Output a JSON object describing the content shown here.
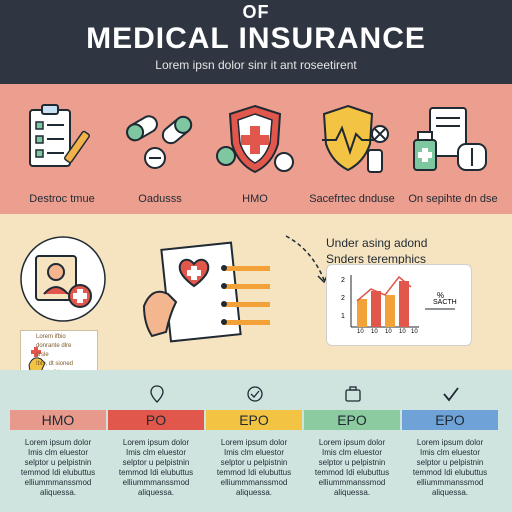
{
  "header": {
    "top_text": "OF",
    "title": "MEDICAL INSURANCE",
    "subtitle": "Lorem ipsn dolor sinr it ant roseetirent"
  },
  "icons_row": [
    {
      "icon": "clipboard-checklist-icon",
      "caption": "Destroc tmue"
    },
    {
      "icon": "pills-icon",
      "caption": "Oadusss"
    },
    {
      "icon": "shield-cross-icon",
      "caption": "HMO"
    },
    {
      "icon": "heartbeat-shield-icon",
      "caption": "Sacefrtec dnduse"
    },
    {
      "icon": "medical-kit-icon",
      "caption": "On sepihte dn dse"
    }
  ],
  "middle": {
    "under_line1": "Under asing adond",
    "under_line2": "Snders teremphics",
    "chart_ticks_y": [
      "2",
      "2",
      "1"
    ],
    "chart_ticks_x": [
      "10",
      "10",
      "10",
      "10",
      "10"
    ],
    "chart_side_label1": "%",
    "chart_side_label2": "SACTH",
    "note_lines": [
      "Lorem ifbio",
      "donrante dlre",
      "srsle",
      "Ibls, dt sioned",
      "aotetrdid"
    ]
  },
  "plans": [
    {
      "name": "HMO",
      "color": "#e79a8c",
      "icon": "none",
      "desc": [
        "Lorem ipsum dolor",
        "Imis clm eluestor",
        "selptor u pelpistnin",
        "temmod Idi elubuttus",
        "elliummmanssmod",
        "aliquessa."
      ]
    },
    {
      "name": "PO",
      "color": "#e2574c",
      "icon": "location-pin-icon",
      "desc": [
        "Lorem ipsum dolor",
        "Imis clm eluestor",
        "selptor u pelpistnin",
        "temmod Idi elubuttus",
        "elliummmanssmod",
        "aliquessa."
      ]
    },
    {
      "name": "EPO",
      "color": "#f3c343",
      "icon": "check-circle-icon",
      "desc": [
        "Lorem ipsum dolor",
        "Imis clm eluestor",
        "selptor u pelpistnin",
        "temmod Idi elubuttus",
        "elliummmanssmod",
        "aliquessa."
      ]
    },
    {
      "name": "EPO",
      "color": "#8ccaa0",
      "icon": "briefcase-icon",
      "desc": [
        "Lorem ipsum dolor",
        "Imis clm eluestor",
        "selptor u pelpistnin",
        "temmod Idi elubuttus",
        "elliummmanssmod",
        "aliquessa."
      ]
    },
    {
      "name": "EPO",
      "color": "#6fa3d8",
      "icon": "checkmark-icon",
      "desc": [
        "Lorem ipsum dolor",
        "Imis clm eluestor",
        "selptor u pelpistnin",
        "temmod Idi elubuttus",
        "elliummmanssmod",
        "aliquessa."
      ]
    }
  ]
}
